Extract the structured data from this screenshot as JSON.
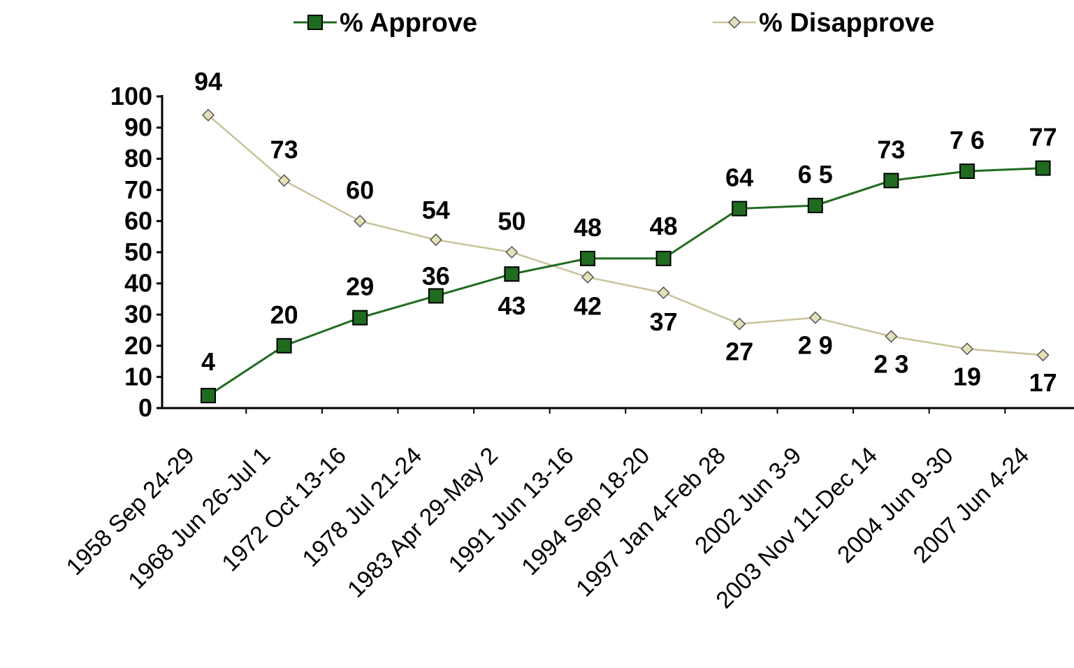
{
  "chart_data": {
    "type": "line",
    "categories": [
      "1958 Sep 24-29",
      "1968 Jun 26-Jul 1",
      "1972 Oct 13-16",
      "1978 Jul 21-24",
      "1983 Apr 29-May 2",
      "1991 Jun 13-16",
      "1994 Sep 18-20",
      "1997 Jan 4-Feb 28",
      "2002 Jun 3-9",
      "2003 Nov 11-Dec 14",
      "2004 Jun 9-30",
      "2007 Jun 4-24"
    ],
    "series": [
      {
        "name": "% Approve",
        "color": "#1f6b1f",
        "marker": "square",
        "values": [
          4,
          20,
          29,
          36,
          43,
          48,
          48,
          64,
          65,
          73,
          76,
          77
        ],
        "labels": [
          "4",
          "20",
          "29",
          "36",
          "43",
          "48",
          "48",
          "64",
          "6 5",
          "73",
          "7 6",
          "77"
        ]
      },
      {
        "name": "% Disapprove",
        "color": "#c8c39a",
        "marker": "diamond",
        "values": [
          94,
          73,
          60,
          54,
          50,
          42,
          37,
          27,
          29,
          23,
          19,
          17
        ],
        "labels": [
          "94",
          "73",
          "60",
          "54",
          "50",
          "42",
          "37",
          "27",
          "2 9",
          "2 3",
          "19",
          "17"
        ]
      }
    ],
    "ylim": [
      0,
      100
    ],
    "yticks": [
      0,
      10,
      20,
      30,
      40,
      50,
      60,
      70,
      80,
      90,
      100
    ],
    "legend_position": "top",
    "grid": false
  }
}
